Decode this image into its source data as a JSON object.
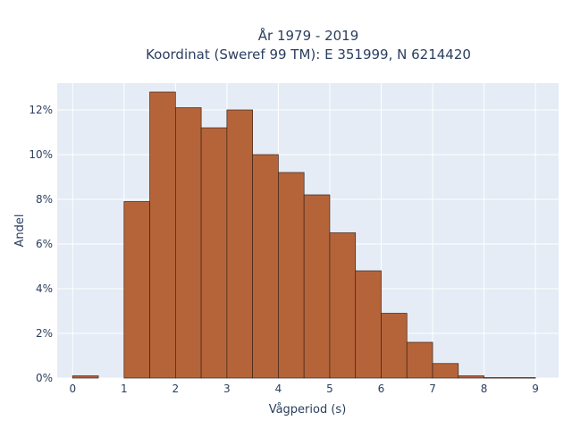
{
  "chart_data": {
    "type": "bar",
    "title_line1": "År 1979 - 2019",
    "title_line2": "Koordinat (Sweref 99 TM): E 351999, N 6214420",
    "xlabel": "Vågperiod (s)",
    "ylabel": "Andel",
    "bin_width": 0.5,
    "bin_starts": [
      0,
      0.5,
      1,
      1.5,
      2,
      2.5,
      3,
      3.5,
      4,
      4.5,
      5,
      5.5,
      6,
      6.5,
      7,
      7.5,
      8,
      8.5
    ],
    "values": [
      0.1,
      0,
      7.9,
      12.8,
      12.1,
      11.2,
      12.0,
      10.0,
      9.2,
      8.2,
      6.5,
      4.8,
      2.9,
      1.6,
      0.65,
      0.1,
      0.02,
      0.02
    ],
    "xlim": [
      -0.3,
      9.45
    ],
    "ylim": [
      0,
      13.2
    ],
    "xticks": [
      0,
      1,
      2,
      3,
      4,
      5,
      6,
      7,
      8,
      9
    ],
    "xtick_labels": [
      "0",
      "1",
      "2",
      "3",
      "4",
      "5",
      "6",
      "7",
      "8",
      "9"
    ],
    "yticks": [
      0,
      2,
      4,
      6,
      8,
      10,
      12
    ],
    "ytick_labels": [
      "0%",
      "2%",
      "4%",
      "6%",
      "8%",
      "10%",
      "12%"
    ],
    "grid": true,
    "colors": {
      "bar_fill": "#b5643a",
      "bar_stroke": "#3d2418",
      "plot_bg": "#e5ecf6",
      "grid": "#ffffff",
      "text": "#2a3f5f"
    }
  }
}
